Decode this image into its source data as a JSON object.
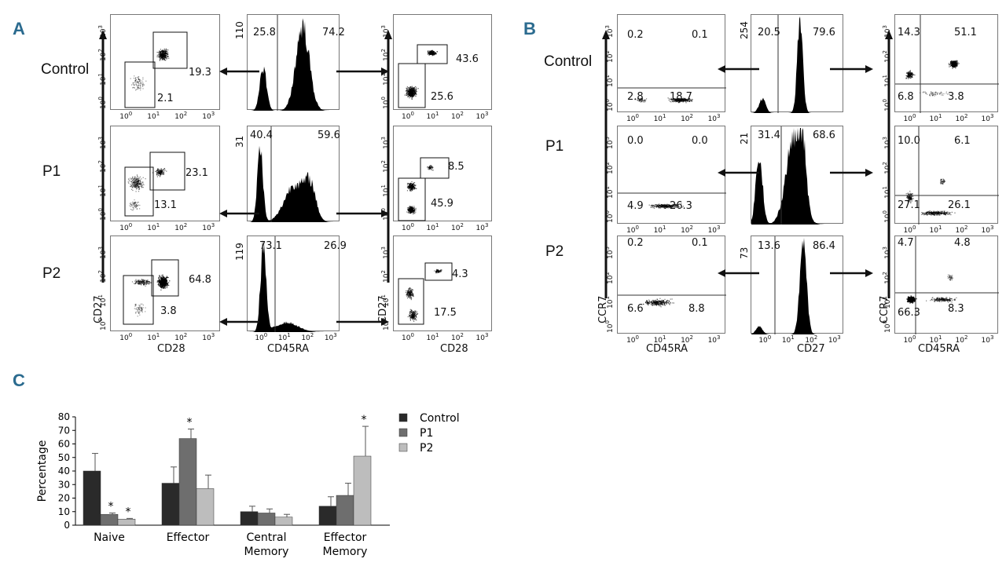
{
  "panels": {
    "A": {
      "letter": "A",
      "rows": [
        "Control",
        "P1",
        "P2"
      ],
      "left_xlabel": "CD28",
      "left_ylabel": "CD27",
      "hist_xlabel": "CD45RA",
      "right_xlabel": "CD28",
      "right_ylabel": "CD27",
      "left_pcts": [
        [
          "19.3",
          "2.1"
        ],
        [
          "23.1",
          "13.1"
        ],
        [
          "64.8",
          "3.8"
        ]
      ],
      "hist_ymax": [
        "110",
        "31",
        "119"
      ],
      "hist_pcts": [
        [
          "25.8",
          "74.2"
        ],
        [
          "40.4",
          "59.6"
        ],
        [
          "73.1",
          "26.9"
        ]
      ],
      "right_pcts": [
        [
          "43.6",
          "25.6"
        ],
        [
          "8.5",
          "45.9"
        ],
        [
          "4.3",
          "17.5"
        ]
      ]
    },
    "B": {
      "letter": "B",
      "rows": [
        "Control",
        "P1",
        "P2"
      ],
      "left_xlabel": "CD45RA",
      "left_ylabel": "CCR7",
      "hist_xlabel": "CD27",
      "right_xlabel": "CD45RA",
      "right_ylabel": "CCR7",
      "left_pcts": [
        [
          "0.2",
          "0.1",
          "2.8",
          "18.7"
        ],
        [
          "0.0",
          "0.0",
          "4.9",
          "26.3"
        ],
        [
          "0.2",
          "0.1",
          "6.6",
          "8.8"
        ]
      ],
      "hist_ymax": [
        "254",
        "21",
        "73"
      ],
      "hist_pcts": [
        [
          "20.5",
          "79.6"
        ],
        [
          "31.4",
          "68.6"
        ],
        [
          "13.6",
          "86.4"
        ]
      ],
      "right_pcts": [
        [
          "14.3",
          "51.1",
          "6.8",
          "3.8"
        ],
        [
          "10.0",
          "6.1",
          "27.1",
          "26.1"
        ],
        [
          "4.7",
          "4.8",
          "66.3",
          "8.3"
        ]
      ]
    },
    "C": {
      "letter": "C"
    }
  },
  "ticks": {
    "log": [
      "10",
      "10",
      "10",
      "10"
    ],
    "exp": [
      "0",
      "1",
      "2",
      "3"
    ]
  },
  "chart_data": {
    "type": "bar",
    "title": "",
    "ylabel": "Percentage",
    "xlabel": "",
    "ylim": [
      0,
      80
    ],
    "yticks": [
      0,
      10,
      20,
      30,
      40,
      50,
      60,
      70,
      80
    ],
    "categories": [
      [
        "Naive"
      ],
      [
        "Effector"
      ],
      [
        "Central",
        "Memory"
      ],
      [
        "Effector",
        "Memory"
      ]
    ],
    "series": [
      {
        "name": "Control",
        "color": "#2a2a2a",
        "values": [
          40,
          31,
          10,
          14
        ],
        "errors": [
          13,
          12,
          4,
          7
        ]
      },
      {
        "name": "P1",
        "color": "#6e6e6e",
        "values": [
          8,
          64,
          9,
          22
        ],
        "errors": [
          1,
          7,
          3,
          9
        ]
      },
      {
        "name": "P2",
        "color": "#bdbdbd",
        "values": [
          4.5,
          27,
          6,
          51
        ],
        "errors": [
          0.5,
          10,
          2,
          22
        ]
      }
    ],
    "significance": [
      {
        "category": 0,
        "series": 1,
        "text": "*"
      },
      {
        "category": 0,
        "series": 2,
        "text": "*"
      },
      {
        "category": 1,
        "series": 1,
        "text": "*"
      },
      {
        "category": 3,
        "series": 2,
        "text": "*"
      }
    ],
    "legend_position": "right"
  }
}
